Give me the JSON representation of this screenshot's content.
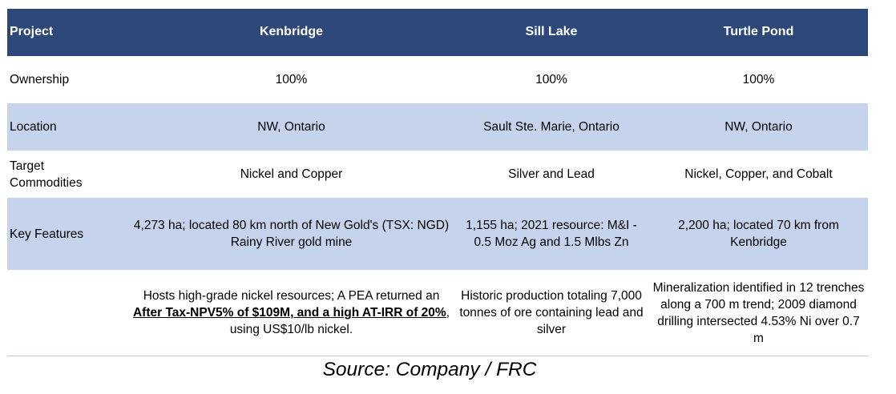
{
  "table": {
    "header": [
      "Project",
      "Kenbridge",
      "Sill Lake",
      "Turtle Pond"
    ],
    "ownership": {
      "label": "Ownership",
      "values": [
        "100%",
        "100%",
        "100%"
      ]
    },
    "location": {
      "label": "Location",
      "values": [
        "NW, Ontario",
        "Sault Ste. Marie, Ontario",
        "NW, Ontario"
      ]
    },
    "target": {
      "label_line1": "Target",
      "label_line2": "Commodities",
      "values": [
        "Nickel and Copper",
        "Silver and Lead",
        "Nickel, Copper, and Cobalt"
      ]
    },
    "key_features": {
      "label": "Key Features",
      "values": [
        "4,273 ha; located 80 km north of New Gold's (TSX: NGD) Rainy River gold mine",
        "1,155 ha; 2021 resource:  M&I - 0.5 Moz Ag and 1.5 Mlbs Zn",
        "2,200 ha; located 70 km from Kenbridge"
      ]
    },
    "details": {
      "kenbridge": {
        "part1": "Hosts high-grade nickel resources; A PEA returned an ",
        "emphasis": "After Tax-NPV5% of $109M, and a high AT-IRR of 20%",
        "part2": ", using US$10/lb nickel."
      },
      "sill_lake": "Historic production totaling 7,000 tonnes of ore containing lead and silver",
      "turtle_pond": "Mineralization identified in 12 trenches along a 700 m trend; 2009 diamond drilling intersected 4.53% Ni over 0.7 m"
    }
  },
  "source": "Source: Company / FRC",
  "colors": {
    "header_bg": "#2d4778",
    "band_bg": "#c5d4ec"
  }
}
